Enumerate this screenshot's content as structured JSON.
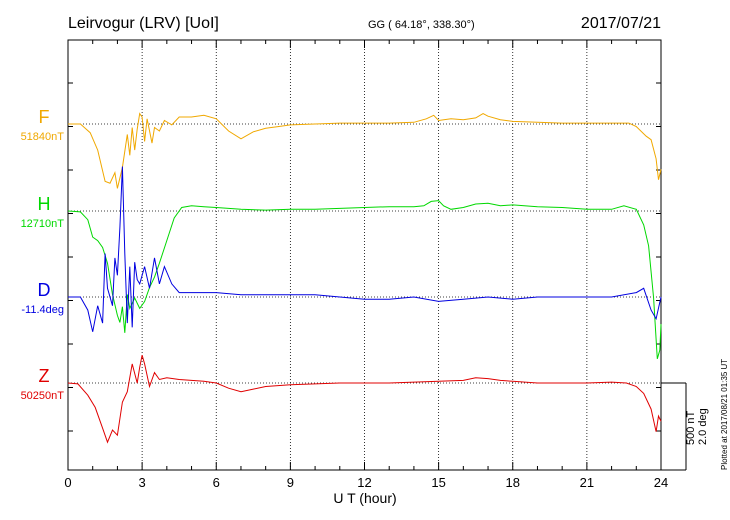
{
  "header": {
    "station": "Leirvogur (LRV)  [UoI]",
    "coords": "GG ( 64.18°, 338.30°)",
    "date": "2017/07/21"
  },
  "footer": {
    "plotted": "Plotted at 2017/08/21 01:35 UT"
  },
  "scale": {
    "nt": "500 nT",
    "deg": "2.0 deg"
  },
  "chart_data": {
    "type": "line",
    "xlabel": "U T (hour)",
    "xlim": [
      0,
      24
    ],
    "xticks": [
      "0",
      "3",
      "6",
      "9",
      "12",
      "15",
      "18",
      "21",
      "24"
    ],
    "series": [
      {
        "name": "F",
        "baseline": "51840nT",
        "color": "#f0a800",
        "offset_nt": [
          [
            0,
            0
          ],
          [
            0.5,
            0
          ],
          [
            0.9,
            -50
          ],
          [
            1.2,
            -150
          ],
          [
            1.5,
            -330
          ],
          [
            1.7,
            -340
          ],
          [
            1.9,
            -280
          ],
          [
            2.0,
            -370
          ],
          [
            2.2,
            -250
          ],
          [
            2.4,
            -60
          ],
          [
            2.5,
            -180
          ],
          [
            2.6,
            -20
          ],
          [
            2.7,
            -150
          ],
          [
            2.8,
            -30
          ],
          [
            2.9,
            60
          ],
          [
            3.0,
            40
          ],
          [
            3.1,
            -100
          ],
          [
            3.2,
            30
          ],
          [
            3.4,
            -110
          ],
          [
            3.5,
            -20
          ],
          [
            3.7,
            -40
          ],
          [
            3.9,
            20
          ],
          [
            4.2,
            -5
          ],
          [
            4.5,
            40
          ],
          [
            5.0,
            40
          ],
          [
            5.5,
            50
          ],
          [
            6.0,
            30
          ],
          [
            6.5,
            -40
          ],
          [
            7.0,
            -85
          ],
          [
            7.5,
            -45
          ],
          [
            8.0,
            -25
          ],
          [
            8.5,
            -15
          ],
          [
            9.0,
            -5
          ],
          [
            10,
            0
          ],
          [
            11,
            5
          ],
          [
            12,
            5
          ],
          [
            13,
            5
          ],
          [
            14,
            10
          ],
          [
            14.5,
            30
          ],
          [
            14.8,
            50
          ],
          [
            15.0,
            20
          ],
          [
            15.5,
            30
          ],
          [
            16,
            25
          ],
          [
            16.5,
            35
          ],
          [
            16.8,
            60
          ],
          [
            17.0,
            45
          ],
          [
            17.5,
            25
          ],
          [
            18,
            15
          ],
          [
            19,
            10
          ],
          [
            20,
            5
          ],
          [
            21,
            5
          ],
          [
            22,
            5
          ],
          [
            22.7,
            5
          ],
          [
            23.0,
            -15
          ],
          [
            23.4,
            -70
          ],
          [
            23.6,
            -90
          ],
          [
            23.8,
            -200
          ],
          [
            23.9,
            -320
          ],
          [
            24,
            -260
          ]
        ]
      },
      {
        "name": "H",
        "baseline": "12710nT",
        "color": "#00d800",
        "offset_nt": [
          [
            0,
            0
          ],
          [
            0.5,
            -5
          ],
          [
            0.8,
            -50
          ],
          [
            1.0,
            -150
          ],
          [
            1.2,
            -170
          ],
          [
            1.4,
            -210
          ],
          [
            1.6,
            -300
          ],
          [
            1.8,
            -480
          ],
          [
            2.0,
            -600
          ],
          [
            2.1,
            -640
          ],
          [
            2.2,
            -550
          ],
          [
            2.3,
            -700
          ],
          [
            2.4,
            -480
          ],
          [
            2.5,
            -560
          ],
          [
            2.7,
            -500
          ],
          [
            2.9,
            -560
          ],
          [
            3.1,
            -520
          ],
          [
            3.3,
            -440
          ],
          [
            3.5,
            -380
          ],
          [
            3.7,
            -300
          ],
          [
            4.0,
            -170
          ],
          [
            4.3,
            -40
          ],
          [
            4.6,
            20
          ],
          [
            5,
            30
          ],
          [
            5.5,
            25
          ],
          [
            6,
            20
          ],
          [
            7,
            10
          ],
          [
            8,
            5
          ],
          [
            9,
            10
          ],
          [
            10,
            10
          ],
          [
            11,
            15
          ],
          [
            12,
            20
          ],
          [
            13,
            25
          ],
          [
            14,
            25
          ],
          [
            14.4,
            30
          ],
          [
            14.7,
            55
          ],
          [
            15,
            60
          ],
          [
            15.2,
            30
          ],
          [
            15.5,
            10
          ],
          [
            16,
            20
          ],
          [
            16.5,
            40
          ],
          [
            17,
            45
          ],
          [
            17.5,
            30
          ],
          [
            18,
            35
          ],
          [
            19,
            25
          ],
          [
            20,
            20
          ],
          [
            21,
            10
          ],
          [
            22,
            10
          ],
          [
            22.5,
            30
          ],
          [
            23.0,
            10
          ],
          [
            23.3,
            -80
          ],
          [
            23.5,
            -200
          ],
          [
            23.7,
            -500
          ],
          [
            23.85,
            -850
          ],
          [
            23.95,
            -800
          ],
          [
            24,
            -650
          ]
        ]
      },
      {
        "name": "D",
        "baseline": "-11.4deg",
        "color": "#0000e0",
        "offset_deg": [
          [
            0,
            0
          ],
          [
            0.5,
            0
          ],
          [
            0.8,
            -0.3
          ],
          [
            1.0,
            -0.8
          ],
          [
            1.2,
            -0.2
          ],
          [
            1.4,
            -0.6
          ],
          [
            1.5,
            1.0
          ],
          [
            1.6,
            0.2
          ],
          [
            1.8,
            -0.2
          ],
          [
            1.9,
            0.9
          ],
          [
            2.0,
            0.5
          ],
          [
            2.1,
            1.6
          ],
          [
            2.2,
            3.0
          ],
          [
            2.3,
            1.0
          ],
          [
            2.4,
            -0.6
          ],
          [
            2.5,
            0.7
          ],
          [
            2.6,
            -0.7
          ],
          [
            2.7,
            0.8
          ],
          [
            2.8,
            0.4
          ],
          [
            2.9,
            0.3
          ],
          [
            3.1,
            0.7
          ],
          [
            3.3,
            0.2
          ],
          [
            3.5,
            0.9
          ],
          [
            3.7,
            0.3
          ],
          [
            3.9,
            0.7
          ],
          [
            4.2,
            0.3
          ],
          [
            4.5,
            0.1
          ],
          [
            5,
            0.1
          ],
          [
            6,
            0.1
          ],
          [
            7,
            0.05
          ],
          [
            8,
            0.05
          ],
          [
            9,
            0.05
          ],
          [
            10,
            0.05
          ],
          [
            11,
            0
          ],
          [
            12,
            -0.05
          ],
          [
            13,
            -0.05
          ],
          [
            14,
            0
          ],
          [
            15,
            -0.1
          ],
          [
            16,
            -0.05
          ],
          [
            17,
            0
          ],
          [
            18,
            -0.05
          ],
          [
            19,
            0
          ],
          [
            20,
            0
          ],
          [
            21,
            0
          ],
          [
            22,
            0
          ],
          [
            23.0,
            0.1
          ],
          [
            23.3,
            0.2
          ],
          [
            23.6,
            -0.3
          ],
          [
            23.8,
            -0.5
          ],
          [
            24,
            0
          ]
        ]
      },
      {
        "name": "Z",
        "baseline": "50250nT",
        "color": "#e00000",
        "offset_nt": [
          [
            0,
            0
          ],
          [
            0.4,
            -5
          ],
          [
            0.8,
            -70
          ],
          [
            1.1,
            -140
          ],
          [
            1.4,
            -260
          ],
          [
            1.6,
            -340
          ],
          [
            1.8,
            -270
          ],
          [
            2.0,
            -300
          ],
          [
            2.2,
            -110
          ],
          [
            2.4,
            -50
          ],
          [
            2.6,
            110
          ],
          [
            2.8,
            0
          ],
          [
            2.9,
            90
          ],
          [
            3.0,
            160
          ],
          [
            3.1,
            110
          ],
          [
            3.3,
            -20
          ],
          [
            3.5,
            60
          ],
          [
            3.7,
            20
          ],
          [
            4.0,
            30
          ],
          [
            4.5,
            20
          ],
          [
            5,
            15
          ],
          [
            5.5,
            10
          ],
          [
            6,
            0
          ],
          [
            6.5,
            -30
          ],
          [
            7.0,
            -50
          ],
          [
            7.5,
            -35
          ],
          [
            8,
            -20
          ],
          [
            9,
            -10
          ],
          [
            10,
            -5
          ],
          [
            11,
            0
          ],
          [
            12,
            0
          ],
          [
            13,
            0
          ],
          [
            14,
            5
          ],
          [
            15,
            10
          ],
          [
            16,
            15
          ],
          [
            16.5,
            30
          ],
          [
            17,
            25
          ],
          [
            17.5,
            15
          ],
          [
            18,
            10
          ],
          [
            19,
            0
          ],
          [
            20,
            0
          ],
          [
            21,
            0
          ],
          [
            22,
            5
          ],
          [
            22.6,
            0
          ],
          [
            23.0,
            -20
          ],
          [
            23.3,
            -60
          ],
          [
            23.6,
            -150
          ],
          [
            23.8,
            -280
          ],
          [
            23.9,
            -190
          ],
          [
            24,
            -220
          ]
        ]
      }
    ]
  }
}
